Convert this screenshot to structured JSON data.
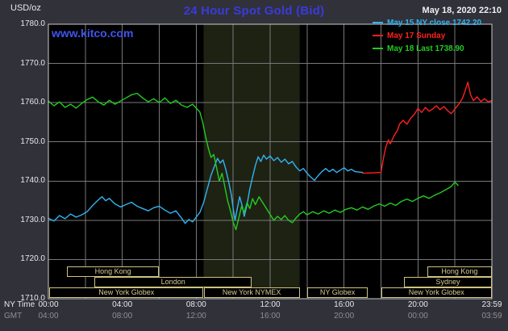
{
  "header": {
    "datetime": "May 18, 2020 22:10",
    "watermark": "www.kitco.com"
  },
  "axes": {
    "ny_time_label": "NY Time",
    "gmt_label": "GMT"
  },
  "colors": {
    "background": "#31313a",
    "plot_background": "#000000",
    "grid": "#787878",
    "frame": "#cccccc",
    "title": "#3a3ad9",
    "watermark": "#4054ee",
    "band": "#1e2213",
    "axis_text": "#e8e8e8",
    "gmt_text": "#8f8f8f",
    "session_border": "#cfc37f",
    "session_text": "#d6cc96"
  },
  "sessions": {
    "rows": [
      {
        "boxes": [
          {
            "label": "Hong Kong",
            "start": 1.0,
            "end": 6.0
          },
          {
            "label": "Hong Kong",
            "start": 20.5,
            "end": 24
          }
        ]
      },
      {
        "boxes": [
          {
            "label": "London",
            "start": 2.5,
            "end": 11.0
          },
          {
            "label": "Sydney",
            "start": 19.25,
            "end": 24
          }
        ]
      },
      {
        "boxes": [
          {
            "label": "New York Globex",
            "start": 0.05,
            "end": 8.4
          },
          {
            "label": "New York NYMEX",
            "start": 8.4,
            "end": 13.6
          },
          {
            "label": "NY Globex",
            "start": 14.0,
            "end": 17.3
          },
          {
            "label": "New York Globex",
            "start": 18.0,
            "end": 24
          }
        ]
      }
    ]
  },
  "chart_data": {
    "type": "line",
    "title": "24 Hour Spot Gold (Bid)",
    "ylabel": "USD/oz",
    "ylim": [
      1710,
      1780
    ],
    "xlim_hours": [
      0,
      24
    ],
    "y_tick_interval": 10,
    "x_gridline_interval_hours": 2,
    "grid": true,
    "legend_position": "top-right",
    "y_tick_labels": [
      "1780.0",
      "1770.0",
      "1760.0",
      "1750.0",
      "1740.0",
      "1730.0",
      "1720.0",
      "1710.0"
    ],
    "x_ticks": [
      {
        "hour": 0,
        "ny": "00:00",
        "gmt": "04:00"
      },
      {
        "hour": 4,
        "ny": "04:00",
        "gmt": "08:00"
      },
      {
        "hour": 8,
        "ny": "08:00",
        "gmt": "12:00"
      },
      {
        "hour": 12,
        "ny": "12:00",
        "gmt": "16:00"
      },
      {
        "hour": 16,
        "ny": "16:00",
        "gmt": "20:00"
      },
      {
        "hour": 20,
        "ny": "20:00",
        "gmt": "00:00"
      },
      {
        "hour": 24,
        "ny": "23:59",
        "gmt": "03:59"
      }
    ],
    "highlight_band": {
      "start_hour": 8.4,
      "end_hour": 13.6
    },
    "series": [
      {
        "id": "may15",
        "name": "May 15 NY close 1742.20",
        "color": "#31b4f2",
        "points": [
          [
            0,
            1730.5
          ],
          [
            0.3,
            1729.8
          ],
          [
            0.6,
            1731.2
          ],
          [
            0.9,
            1730.4
          ],
          [
            1.2,
            1731.6
          ],
          [
            1.5,
            1730.8
          ],
          [
            1.8,
            1731.4
          ],
          [
            2.1,
            1732.2
          ],
          [
            2.4,
            1733.8
          ],
          [
            2.7,
            1735.2
          ],
          [
            2.9,
            1736
          ],
          [
            3.1,
            1735
          ],
          [
            3.3,
            1735.6
          ],
          [
            3.6,
            1734.2
          ],
          [
            3.9,
            1733.4
          ],
          [
            4.2,
            1734
          ],
          [
            4.5,
            1734.6
          ],
          [
            4.8,
            1733.6
          ],
          [
            5.1,
            1733
          ],
          [
            5.4,
            1732.4
          ],
          [
            5.7,
            1733.2
          ],
          [
            6,
            1733.6
          ],
          [
            6.3,
            1732.6
          ],
          [
            6.6,
            1731.8
          ],
          [
            6.9,
            1732.4
          ],
          [
            7.2,
            1730.6
          ],
          [
            7.4,
            1729.2
          ],
          [
            7.6,
            1730.2
          ],
          [
            7.8,
            1729.6
          ],
          [
            8,
            1730.8
          ],
          [
            8.2,
            1732
          ],
          [
            8.4,
            1734.5
          ],
          [
            8.6,
            1738
          ],
          [
            8.8,
            1741.5
          ],
          [
            9,
            1744
          ],
          [
            9.15,
            1745.8
          ],
          [
            9.3,
            1744.6
          ],
          [
            9.45,
            1745.4
          ],
          [
            9.6,
            1743
          ],
          [
            9.75,
            1740
          ],
          [
            9.9,
            1736.5
          ],
          [
            10,
            1733
          ],
          [
            10.1,
            1730
          ],
          [
            10.2,
            1732.5
          ],
          [
            10.35,
            1736
          ],
          [
            10.5,
            1733.5
          ],
          [
            10.6,
            1731
          ],
          [
            10.75,
            1734
          ],
          [
            10.9,
            1738
          ],
          [
            11.05,
            1741
          ],
          [
            11.2,
            1744
          ],
          [
            11.35,
            1746.2
          ],
          [
            11.5,
            1745
          ],
          [
            11.65,
            1746.6
          ],
          [
            11.8,
            1745.6
          ],
          [
            12,
            1746.4
          ],
          [
            12.2,
            1745.2
          ],
          [
            12.4,
            1746
          ],
          [
            12.6,
            1744.8
          ],
          [
            12.8,
            1745.6
          ],
          [
            13,
            1744.4
          ],
          [
            13.2,
            1745
          ],
          [
            13.4,
            1743.6
          ],
          [
            13.6,
            1742.6
          ],
          [
            13.8,
            1743.2
          ],
          [
            14,
            1742
          ],
          [
            14.2,
            1741
          ],
          [
            14.4,
            1740.2
          ],
          [
            14.6,
            1741.4
          ],
          [
            14.8,
            1742.4
          ],
          [
            15,
            1743.2
          ],
          [
            15.2,
            1742.4
          ],
          [
            15.4,
            1743
          ],
          [
            15.6,
            1742.2
          ],
          [
            15.8,
            1742.8
          ],
          [
            16,
            1743.4
          ],
          [
            16.2,
            1742.6
          ],
          [
            16.4,
            1743
          ],
          [
            16.6,
            1742.4
          ],
          [
            16.8,
            1742.3
          ],
          [
            17,
            1742.2
          ]
        ]
      },
      {
        "id": "may17",
        "name": "May 17 Sunday",
        "color": "#ff2020",
        "points": [
          [
            17,
            1742
          ],
          [
            17.6,
            1742.1
          ],
          [
            18,
            1742.2
          ],
          [
            18.1,
            1745
          ],
          [
            18.25,
            1748.5
          ],
          [
            18.4,
            1750.5
          ],
          [
            18.5,
            1749.5
          ],
          [
            18.7,
            1751.5
          ],
          [
            18.9,
            1753
          ],
          [
            19,
            1754.5
          ],
          [
            19.2,
            1755.5
          ],
          [
            19.4,
            1754.5
          ],
          [
            19.6,
            1756
          ],
          [
            19.8,
            1757
          ],
          [
            20,
            1758.5
          ],
          [
            20.2,
            1757.5
          ],
          [
            20.4,
            1758.8
          ],
          [
            20.6,
            1757.8
          ],
          [
            20.8,
            1758.4
          ],
          [
            21,
            1759.2
          ],
          [
            21.2,
            1758.2
          ],
          [
            21.4,
            1759
          ],
          [
            21.6,
            1758
          ],
          [
            21.8,
            1757.2
          ],
          [
            22,
            1758.4
          ],
          [
            22.2,
            1759.6
          ],
          [
            22.4,
            1761
          ],
          [
            22.55,
            1763
          ],
          [
            22.7,
            1765.2
          ],
          [
            22.85,
            1762
          ],
          [
            23,
            1760.5
          ],
          [
            23.2,
            1761.5
          ],
          [
            23.4,
            1760.3
          ],
          [
            23.6,
            1761
          ],
          [
            23.8,
            1760.2
          ],
          [
            23.98,
            1760.5
          ]
        ]
      },
      {
        "id": "may18",
        "name": "May 18 Last 1738.90",
        "color": "#22cc22",
        "points": [
          [
            0,
            1760.4
          ],
          [
            0.3,
            1759.2
          ],
          [
            0.6,
            1760.2
          ],
          [
            0.9,
            1758.8
          ],
          [
            1.2,
            1759.6
          ],
          [
            1.5,
            1758.6
          ],
          [
            1.8,
            1759.8
          ],
          [
            2.1,
            1760.8
          ],
          [
            2.4,
            1761.4
          ],
          [
            2.7,
            1760.2
          ],
          [
            3,
            1759.4
          ],
          [
            3.3,
            1760.6
          ],
          [
            3.6,
            1759.6
          ],
          [
            3.9,
            1760.4
          ],
          [
            4.2,
            1761.2
          ],
          [
            4.5,
            1762
          ],
          [
            4.8,
            1762.4
          ],
          [
            5.1,
            1761.2
          ],
          [
            5.4,
            1760.2
          ],
          [
            5.7,
            1761
          ],
          [
            6,
            1760
          ],
          [
            6.3,
            1761.2
          ],
          [
            6.6,
            1759.8
          ],
          [
            6.9,
            1760.6
          ],
          [
            7.2,
            1759.4
          ],
          [
            7.5,
            1758.8
          ],
          [
            7.8,
            1759.6
          ],
          [
            8,
            1758.6
          ],
          [
            8.2,
            1757.6
          ],
          [
            8.35,
            1755
          ],
          [
            8.5,
            1751.5
          ],
          [
            8.65,
            1748.5
          ],
          [
            8.8,
            1746
          ],
          [
            8.95,
            1746.8
          ],
          [
            9.1,
            1743.5
          ],
          [
            9.25,
            1740
          ],
          [
            9.4,
            1742
          ],
          [
            9.55,
            1738.5
          ],
          [
            9.7,
            1735
          ],
          [
            9.85,
            1732.5
          ],
          [
            10,
            1729.5
          ],
          [
            10.15,
            1727.6
          ],
          [
            10.3,
            1730.5
          ],
          [
            10.45,
            1733.5
          ],
          [
            10.6,
            1732
          ],
          [
            10.75,
            1734.5
          ],
          [
            10.9,
            1733
          ],
          [
            11.05,
            1735.5
          ],
          [
            11.2,
            1734
          ],
          [
            11.4,
            1736
          ],
          [
            11.6,
            1734.5
          ],
          [
            11.8,
            1733
          ],
          [
            12,
            1731.5
          ],
          [
            12.2,
            1730
          ],
          [
            12.4,
            1731
          ],
          [
            12.6,
            1730.2
          ],
          [
            12.8,
            1731.2
          ],
          [
            13,
            1730
          ],
          [
            13.2,
            1729.4
          ],
          [
            13.4,
            1730.6
          ],
          [
            13.6,
            1731.6
          ],
          [
            13.8,
            1732.2
          ],
          [
            14,
            1731.4
          ],
          [
            14.3,
            1732.2
          ],
          [
            14.6,
            1731.6
          ],
          [
            14.9,
            1732.4
          ],
          [
            15.2,
            1731.8
          ],
          [
            15.5,
            1732.6
          ],
          [
            15.8,
            1732
          ],
          [
            16.1,
            1732.8
          ],
          [
            16.4,
            1733.2
          ],
          [
            16.7,
            1732.6
          ],
          [
            17,
            1733.4
          ],
          [
            17.3,
            1732.8
          ],
          [
            17.6,
            1733.6
          ],
          [
            17.9,
            1734.2
          ],
          [
            18.2,
            1733.6
          ],
          [
            18.5,
            1734.4
          ],
          [
            18.8,
            1733.8
          ],
          [
            19.1,
            1734.8
          ],
          [
            19.4,
            1735.4
          ],
          [
            19.7,
            1734.8
          ],
          [
            20,
            1735.6
          ],
          [
            20.3,
            1736.2
          ],
          [
            20.6,
            1735.6
          ],
          [
            20.9,
            1736.4
          ],
          [
            21.2,
            1737
          ],
          [
            21.5,
            1737.8
          ],
          [
            21.8,
            1738.6
          ],
          [
            22,
            1739.8
          ],
          [
            22.17,
            1738.9
          ]
        ]
      }
    ]
  }
}
